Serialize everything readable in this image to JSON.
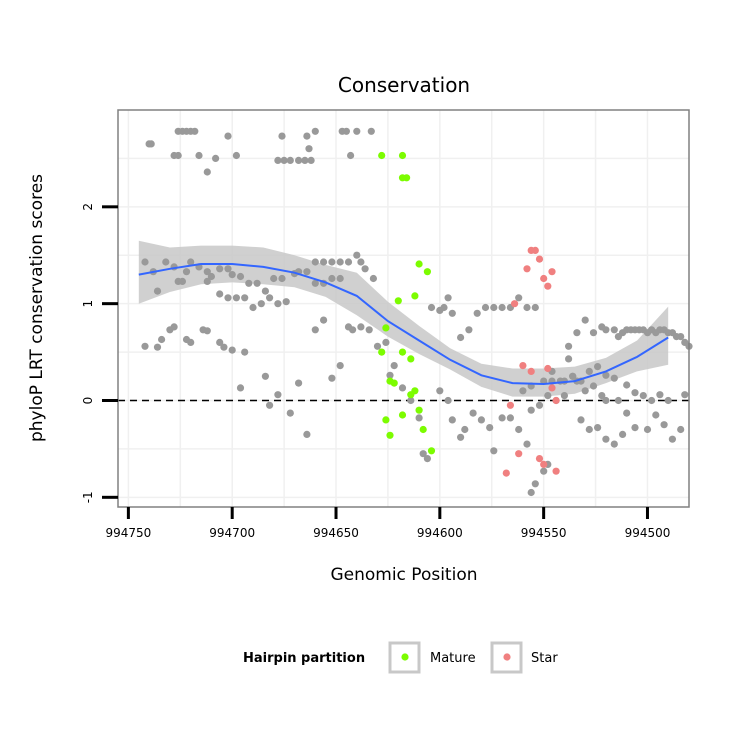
{
  "chart_data": {
    "type": "scatter",
    "title": "Conservation",
    "xlabel": "Genomic Position",
    "ylabel": "phyloP LRT conservation scores",
    "x_reversed": true,
    "xlim": [
      994755,
      994480
    ],
    "ylim": [
      -1.1,
      3.0
    ],
    "x_ticks": [
      994750,
      994700,
      994650,
      994600,
      994550,
      994500
    ],
    "y_ticks": [
      -1,
      0,
      1,
      2
    ],
    "grid": true,
    "reference_line": {
      "y": 0,
      "style": "dashed"
    },
    "legend": {
      "title": "Hairpin partition",
      "placement": "bottom",
      "entries": [
        {
          "name": "Mature",
          "color": "#7CFC00"
        },
        {
          "name": "Star",
          "color": "#F08080"
        }
      ]
    },
    "colors": {
      "other": "#999999",
      "smooth": "#3366FF",
      "ribbon": "#C8C8C8"
    },
    "series": [
      {
        "name": "Other",
        "color": "#999999",
        "points": [
          [
            994740,
            2.65
          ],
          [
            994739,
            2.65
          ],
          [
            994726,
            2.78
          ],
          [
            994724,
            2.78
          ],
          [
            994722,
            2.78
          ],
          [
            994720,
            2.78
          ],
          [
            994718,
            2.78
          ],
          [
            994728,
            2.53
          ],
          [
            994726,
            2.53
          ],
          [
            994716,
            2.53
          ],
          [
            994708,
            2.5
          ],
          [
            994702,
            2.73
          ],
          [
            994698,
            2.53
          ],
          [
            994712,
            2.36
          ],
          [
            994678,
            2.48
          ],
          [
            994675,
            2.48
          ],
          [
            994672,
            2.48
          ],
          [
            994668,
            2.48
          ],
          [
            994665,
            2.48
          ],
          [
            994662,
            2.48
          ],
          [
            994676,
            2.73
          ],
          [
            994664,
            2.73
          ],
          [
            994660,
            2.78
          ],
          [
            994647,
            2.78
          ],
          [
            994645,
            2.78
          ],
          [
            994640,
            2.78
          ],
          [
            994633,
            2.78
          ],
          [
            994663,
            2.6
          ],
          [
            994643,
            2.53
          ],
          [
            994742,
            1.43
          ],
          [
            994738,
            1.33
          ],
          [
            994736,
            1.13
          ],
          [
            994732,
            1.43
          ],
          [
            994728,
            1.38
          ],
          [
            994722,
            1.33
          ],
          [
            994720,
            1.43
          ],
          [
            994716,
            1.38
          ],
          [
            994712,
            1.33
          ],
          [
            994710,
            1.28
          ],
          [
            994706,
            1.36
          ],
          [
            994702,
            1.36
          ],
          [
            994700,
            1.3
          ],
          [
            994696,
            1.28
          ],
          [
            994692,
            1.21
          ],
          [
            994688,
            1.21
          ],
          [
            994684,
            1.13
          ],
          [
            994680,
            1.26
          ],
          [
            994676,
            1.26
          ],
          [
            994670,
            1.31
          ],
          [
            994668,
            1.33
          ],
          [
            994664,
            1.33
          ],
          [
            994660,
            1.43
          ],
          [
            994656,
            1.43
          ],
          [
            994652,
            1.43
          ],
          [
            994648,
            1.43
          ],
          [
            994644,
            1.43
          ],
          [
            994640,
            1.5
          ],
          [
            994638,
            1.43
          ],
          [
            994636,
            1.36
          ],
          [
            994632,
            1.26
          ],
          [
            994726,
            1.23
          ],
          [
            994724,
            1.23
          ],
          [
            994712,
            1.23
          ],
          [
            994706,
            1.1
          ],
          [
            994702,
            1.06
          ],
          [
            994698,
            1.06
          ],
          [
            994694,
            1.06
          ],
          [
            994690,
            0.96
          ],
          [
            994686,
            1.0
          ],
          [
            994682,
            1.06
          ],
          [
            994678,
            1.0
          ],
          [
            994674,
            1.02
          ],
          [
            994660,
            1.21
          ],
          [
            994656,
            1.21
          ],
          [
            994652,
            1.26
          ],
          [
            994648,
            1.26
          ],
          [
            994742,
            0.56
          ],
          [
            994736,
            0.55
          ],
          [
            994734,
            0.63
          ],
          [
            994730,
            0.73
          ],
          [
            994728,
            0.76
          ],
          [
            994722,
            0.63
          ],
          [
            994720,
            0.6
          ],
          [
            994714,
            0.73
          ],
          [
            994712,
            0.72
          ],
          [
            994706,
            0.6
          ],
          [
            994704,
            0.55
          ],
          [
            994700,
            0.52
          ],
          [
            994696,
            0.13
          ],
          [
            994694,
            0.5
          ],
          [
            994684,
            0.25
          ],
          [
            994682,
            -0.05
          ],
          [
            994678,
            0.06
          ],
          [
            994672,
            -0.13
          ],
          [
            994668,
            0.18
          ],
          [
            994664,
            -0.35
          ],
          [
            994660,
            0.73
          ],
          [
            994656,
            0.83
          ],
          [
            994652,
            0.23
          ],
          [
            994648,
            0.36
          ],
          [
            994644,
            0.76
          ],
          [
            994642,
            0.73
          ],
          [
            994638,
            0.76
          ],
          [
            994634,
            0.73
          ],
          [
            994630,
            0.56
          ],
          [
            994626,
            0.6
          ],
          [
            994624,
            0.26
          ],
          [
            994622,
            0.36
          ],
          [
            994618,
            0.13
          ],
          [
            994614,
            0.0
          ],
          [
            994610,
            -0.18
          ],
          [
            994608,
            -0.55
          ],
          [
            994606,
            -0.6
          ],
          [
            994604,
            0.96
          ],
          [
            994600,
            0.93
          ],
          [
            994598,
            0.96
          ],
          [
            994596,
            1.06
          ],
          [
            994594,
            0.9
          ],
          [
            994590,
            0.65
          ],
          [
            994586,
            0.73
          ],
          [
            994582,
            0.9
          ],
          [
            994578,
            0.96
          ],
          [
            994574,
            0.96
          ],
          [
            994570,
            0.96
          ],
          [
            994566,
            0.96
          ],
          [
            994562,
            1.06
          ],
          [
            994558,
            0.96
          ],
          [
            994554,
            0.96
          ],
          [
            994600,
            0.1
          ],
          [
            994596,
            0.0
          ],
          [
            994594,
            -0.2
          ],
          [
            994590,
            -0.38
          ],
          [
            994588,
            -0.3
          ],
          [
            994584,
            -0.13
          ],
          [
            994580,
            -0.2
          ],
          [
            994576,
            -0.28
          ],
          [
            994574,
            -0.52
          ],
          [
            994570,
            -0.18
          ],
          [
            994566,
            -0.18
          ],
          [
            994562,
            -0.3
          ],
          [
            994558,
            -0.45
          ],
          [
            994556,
            -0.95
          ],
          [
            994554,
            -0.86
          ],
          [
            994550,
            -0.73
          ],
          [
            994548,
            -0.66
          ],
          [
            994560,
            0.1
          ],
          [
            994556,
            0.15
          ],
          [
            994550,
            0.2
          ],
          [
            994546,
            0.2
          ],
          [
            994540,
            0.2
          ],
          [
            994536,
            0.25
          ],
          [
            994532,
            0.2
          ],
          [
            994528,
            0.3
          ],
          [
            994524,
            0.35
          ],
          [
            994520,
            0.26
          ],
          [
            994516,
            0.23
          ],
          [
            994556,
            -0.1
          ],
          [
            994552,
            -0.05
          ],
          [
            994548,
            0.05
          ],
          [
            994544,
            0.0
          ],
          [
            994540,
            0.05
          ],
          [
            994536,
            0.25
          ],
          [
            994532,
            -0.2
          ],
          [
            994528,
            -0.3
          ],
          [
            994524,
            -0.28
          ],
          [
            994520,
            -0.4
          ],
          [
            994516,
            -0.45
          ],
          [
            994512,
            -0.35
          ],
          [
            994510,
            -0.13
          ],
          [
            994506,
            -0.28
          ],
          [
            994500,
            -0.3
          ],
          [
            994496,
            -0.15
          ],
          [
            994492,
            -0.25
          ],
          [
            994488,
            -0.4
          ],
          [
            994484,
            -0.3
          ],
          [
            994482,
            0.06
          ],
          [
            994538,
            0.56
          ],
          [
            994534,
            0.7
          ],
          [
            994530,
            0.83
          ],
          [
            994526,
            0.7
          ],
          [
            994522,
            0.76
          ],
          [
            994520,
            0.73
          ],
          [
            994516,
            0.73
          ],
          [
            994514,
            0.66
          ],
          [
            994512,
            0.7
          ],
          [
            994510,
            0.73
          ],
          [
            994508,
            0.73
          ],
          [
            994506,
            0.73
          ],
          [
            994504,
            0.73
          ],
          [
            994502,
            0.73
          ],
          [
            994500,
            0.7
          ],
          [
            994498,
            0.73
          ],
          [
            994496,
            0.7
          ],
          [
            994494,
            0.73
          ],
          [
            994492,
            0.73
          ],
          [
            994490,
            0.7
          ],
          [
            994488,
            0.7
          ],
          [
            994486,
            0.66
          ],
          [
            994484,
            0.66
          ],
          [
            994482,
            0.6
          ],
          [
            994480,
            0.56
          ],
          [
            994546,
            0.3
          ],
          [
            994542,
            0.2
          ],
          [
            994538,
            0.43
          ],
          [
            994534,
            0.2
          ],
          [
            994530,
            0.1
          ],
          [
            994526,
            0.15
          ],
          [
            994522,
            0.05
          ],
          [
            994520,
            0.0
          ],
          [
            994514,
            0.0
          ],
          [
            994510,
            0.16
          ],
          [
            994506,
            0.08
          ],
          [
            994502,
            0.05
          ],
          [
            994498,
            0.0
          ],
          [
            994494,
            0.06
          ],
          [
            994490,
            0.0
          ]
        ]
      },
      {
        "name": "Mature",
        "color": "#7CFC00",
        "points": [
          [
            994628,
            2.53
          ],
          [
            994618,
            2.53
          ],
          [
            994618,
            2.3
          ],
          [
            994616,
            2.3
          ],
          [
            994610,
            1.41
          ],
          [
            994606,
            1.33
          ],
          [
            994620,
            1.03
          ],
          [
            994612,
            1.08
          ],
          [
            994626,
            0.75
          ],
          [
            994628,
            0.5
          ],
          [
            994618,
            0.5
          ],
          [
            994614,
            0.43
          ],
          [
            994624,
            0.2
          ],
          [
            994622,
            0.18
          ],
          [
            994614,
            0.06
          ],
          [
            994612,
            0.1
          ],
          [
            994626,
            -0.2
          ],
          [
            994624,
            -0.36
          ],
          [
            994618,
            -0.15
          ],
          [
            994610,
            -0.1
          ],
          [
            994608,
            -0.3
          ],
          [
            994604,
            -0.52
          ]
        ]
      },
      {
        "name": "Star",
        "color": "#F08080",
        "points": [
          [
            994556,
            1.55
          ],
          [
            994554,
            1.55
          ],
          [
            994552,
            1.46
          ],
          [
            994558,
            1.36
          ],
          [
            994550,
            1.26
          ],
          [
            994546,
            1.33
          ],
          [
            994548,
            1.18
          ],
          [
            994564,
            1.0
          ],
          [
            994560,
            0.36
          ],
          [
            994556,
            0.3
          ],
          [
            994548,
            0.33
          ],
          [
            994546,
            0.13
          ],
          [
            994566,
            -0.05
          ],
          [
            994544,
            0.0
          ],
          [
            994562,
            -0.55
          ],
          [
            994552,
            -0.6
          ],
          [
            994568,
            -0.75
          ],
          [
            994550,
            -0.66
          ],
          [
            994544,
            -0.73
          ]
        ]
      }
    ],
    "smooth": {
      "x": [
        994745,
        994730,
        994715,
        994700,
        994685,
        994670,
        994655,
        994640,
        994625,
        994610,
        994595,
        994580,
        994565,
        994550,
        994535,
        994520,
        994505,
        994490
      ],
      "y": [
        1.3,
        1.36,
        1.41,
        1.41,
        1.38,
        1.32,
        1.22,
        1.08,
        0.82,
        0.62,
        0.42,
        0.26,
        0.18,
        0.17,
        0.2,
        0.3,
        0.45,
        0.65
      ],
      "lower": [
        1.0,
        1.12,
        1.2,
        1.22,
        1.2,
        1.17,
        1.07,
        0.88,
        0.66,
        0.48,
        0.32,
        0.14,
        0.04,
        0.04,
        0.07,
        0.18,
        0.3,
        0.37
      ],
      "upper": [
        1.65,
        1.58,
        1.6,
        1.6,
        1.58,
        1.5,
        1.4,
        1.32,
        1.02,
        0.77,
        0.54,
        0.38,
        0.33,
        0.33,
        0.35,
        0.44,
        0.62,
        0.97
      ]
    }
  }
}
